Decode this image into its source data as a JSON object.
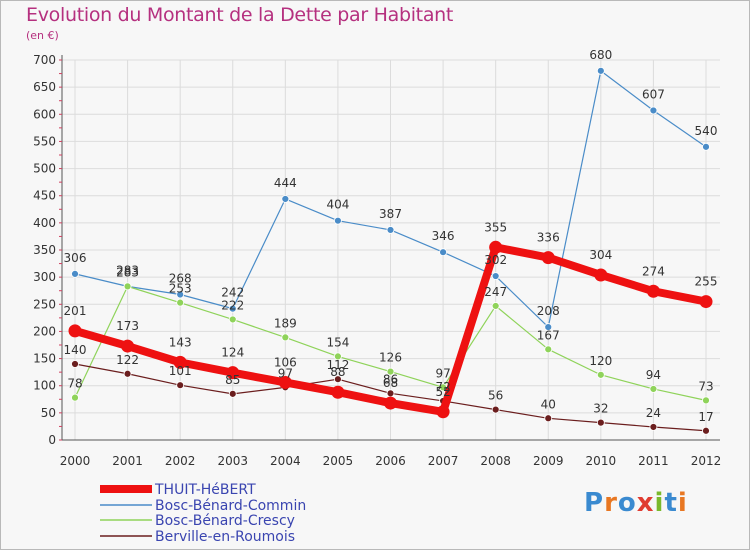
{
  "title": "Evolution du Montant de la Dette par Habitant",
  "subtitle": "(en €)",
  "logo": {
    "text": "Proxiti",
    "colors": [
      "#3a8ad0",
      "#e87722",
      "#3a8ad0",
      "#e03c31",
      "#7ab92c",
      "#3a8ad0",
      "#e87722"
    ]
  },
  "chart_data": {
    "type": "line",
    "x": [
      "2000",
      "2001",
      "2002",
      "2003",
      "2004",
      "2005",
      "2006",
      "2007",
      "2008",
      "2009",
      "2010",
      "2011",
      "2012"
    ],
    "ylim": [
      0,
      700
    ],
    "yticks": [
      0,
      50,
      100,
      150,
      200,
      250,
      300,
      350,
      400,
      450,
      500,
      550,
      600,
      650,
      700
    ],
    "grid": true,
    "legend_position": "bottom-left",
    "series": [
      {
        "name": "Bosc-Bénard-Commin",
        "color": "#4a8cc8",
        "width": 1.2,
        "values": [
          306,
          283,
          268,
          242,
          444,
          404,
          387,
          346,
          302,
          208,
          680,
          607,
          540
        ]
      },
      {
        "name": "Bosc-Bénard-Crescy",
        "color": "#8fd35a",
        "width": 1.2,
        "values": [
          78,
          283,
          253,
          222,
          189,
          154,
          126,
          97,
          247,
          167,
          120,
          94,
          73
        ]
      },
      {
        "name": "Berville-en-Roumois",
        "color": "#6b1e1e",
        "width": 1.2,
        "values": [
          140,
          122,
          101,
          85,
          97,
          112,
          86,
          72,
          56,
          40,
          32,
          24,
          17
        ]
      },
      {
        "name": "THUIT-HéBERT",
        "color": "#ee1111",
        "width": 8,
        "values": [
          201,
          173,
          143,
          124,
          106,
          88,
          68,
          52,
          355,
          336,
          304,
          274,
          255
        ]
      }
    ],
    "legend_order": [
      "THUIT-HéBERT",
      "Bosc-Bénard-Commin",
      "Bosc-Bénard-Crescy",
      "Berville-en-Roumois"
    ]
  }
}
